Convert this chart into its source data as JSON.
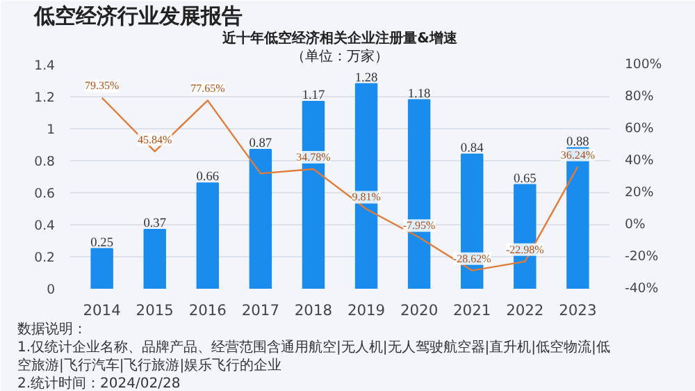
{
  "chart_data": {
    "type": "bar",
    "title": "近十年低空经济相关企业注册量&增速",
    "subtitle": "（单位：万家）",
    "annotations": [
      "低空经济行业发展报告",
      "数据说明：",
      "1.仅统计企业名称、品牌产品、经营范围含通用航空|无人机|无人驾驶航空器|直升机|低空物流|低空旅游|飞行汽车|飞行旅游|娱乐飞行的企业",
      "2.统计时间：2024/02/28"
    ],
    "categories": [
      "2014",
      "2015",
      "2016",
      "2017",
      "2018",
      "2019",
      "2020",
      "2021",
      "2022",
      "2023"
    ],
    "series": [
      {
        "color": "#1a8ced",
        "values": [
          0.25,
          0.37,
          0.66,
          0.87,
          1.17,
          1.28,
          1.18,
          0.84,
          0.65,
          0.88
        ],
        "value_labels": [
          "0.25",
          "0.37",
          "0.66",
          "0.87",
          "1.17",
          "1.28",
          "1.18",
          "0.84",
          "0.65",
          "0.88"
        ]
      },
      {
        "type": "line",
        "axis": "y2",
        "color": "#e07b39",
        "values": [
          79.35,
          45.84,
          77.65,
          32,
          34.78,
          9.81,
          -7.95,
          -28.62,
          -22.98,
          36.24
        ],
        "value_labels": [
          "79.35%",
          "45.84%",
          "77.65%",
          null,
          "34.78%",
          "9.81%",
          "-7.95%",
          "-28.62%",
          "-22.98%",
          "36.24%"
        ]
      }
    ],
    "ylim": [
      0,
      1.4
    ],
    "yticks": [
      0,
      0.2,
      0.4,
      0.6,
      0.8,
      1,
      1.2,
      1.4
    ],
    "y2lim": [
      -40,
      100
    ],
    "y2ticks": [
      {
        "value": -40,
        "label": "-40%"
      },
      {
        "value": -20,
        "label": "-20%"
      },
      {
        "value": 0,
        "label": "0%"
      },
      {
        "value": 20,
        "label": "20%"
      },
      {
        "value": 40,
        "label": "40%"
      },
      {
        "value": 60,
        "label": "60%"
      },
      {
        "value": 80,
        "label": "80%"
      },
      {
        "value": 100,
        "label": "100%"
      }
    ],
    "grid": "y",
    "legend": false,
    "marker": "none",
    "line_style": "solid"
  }
}
